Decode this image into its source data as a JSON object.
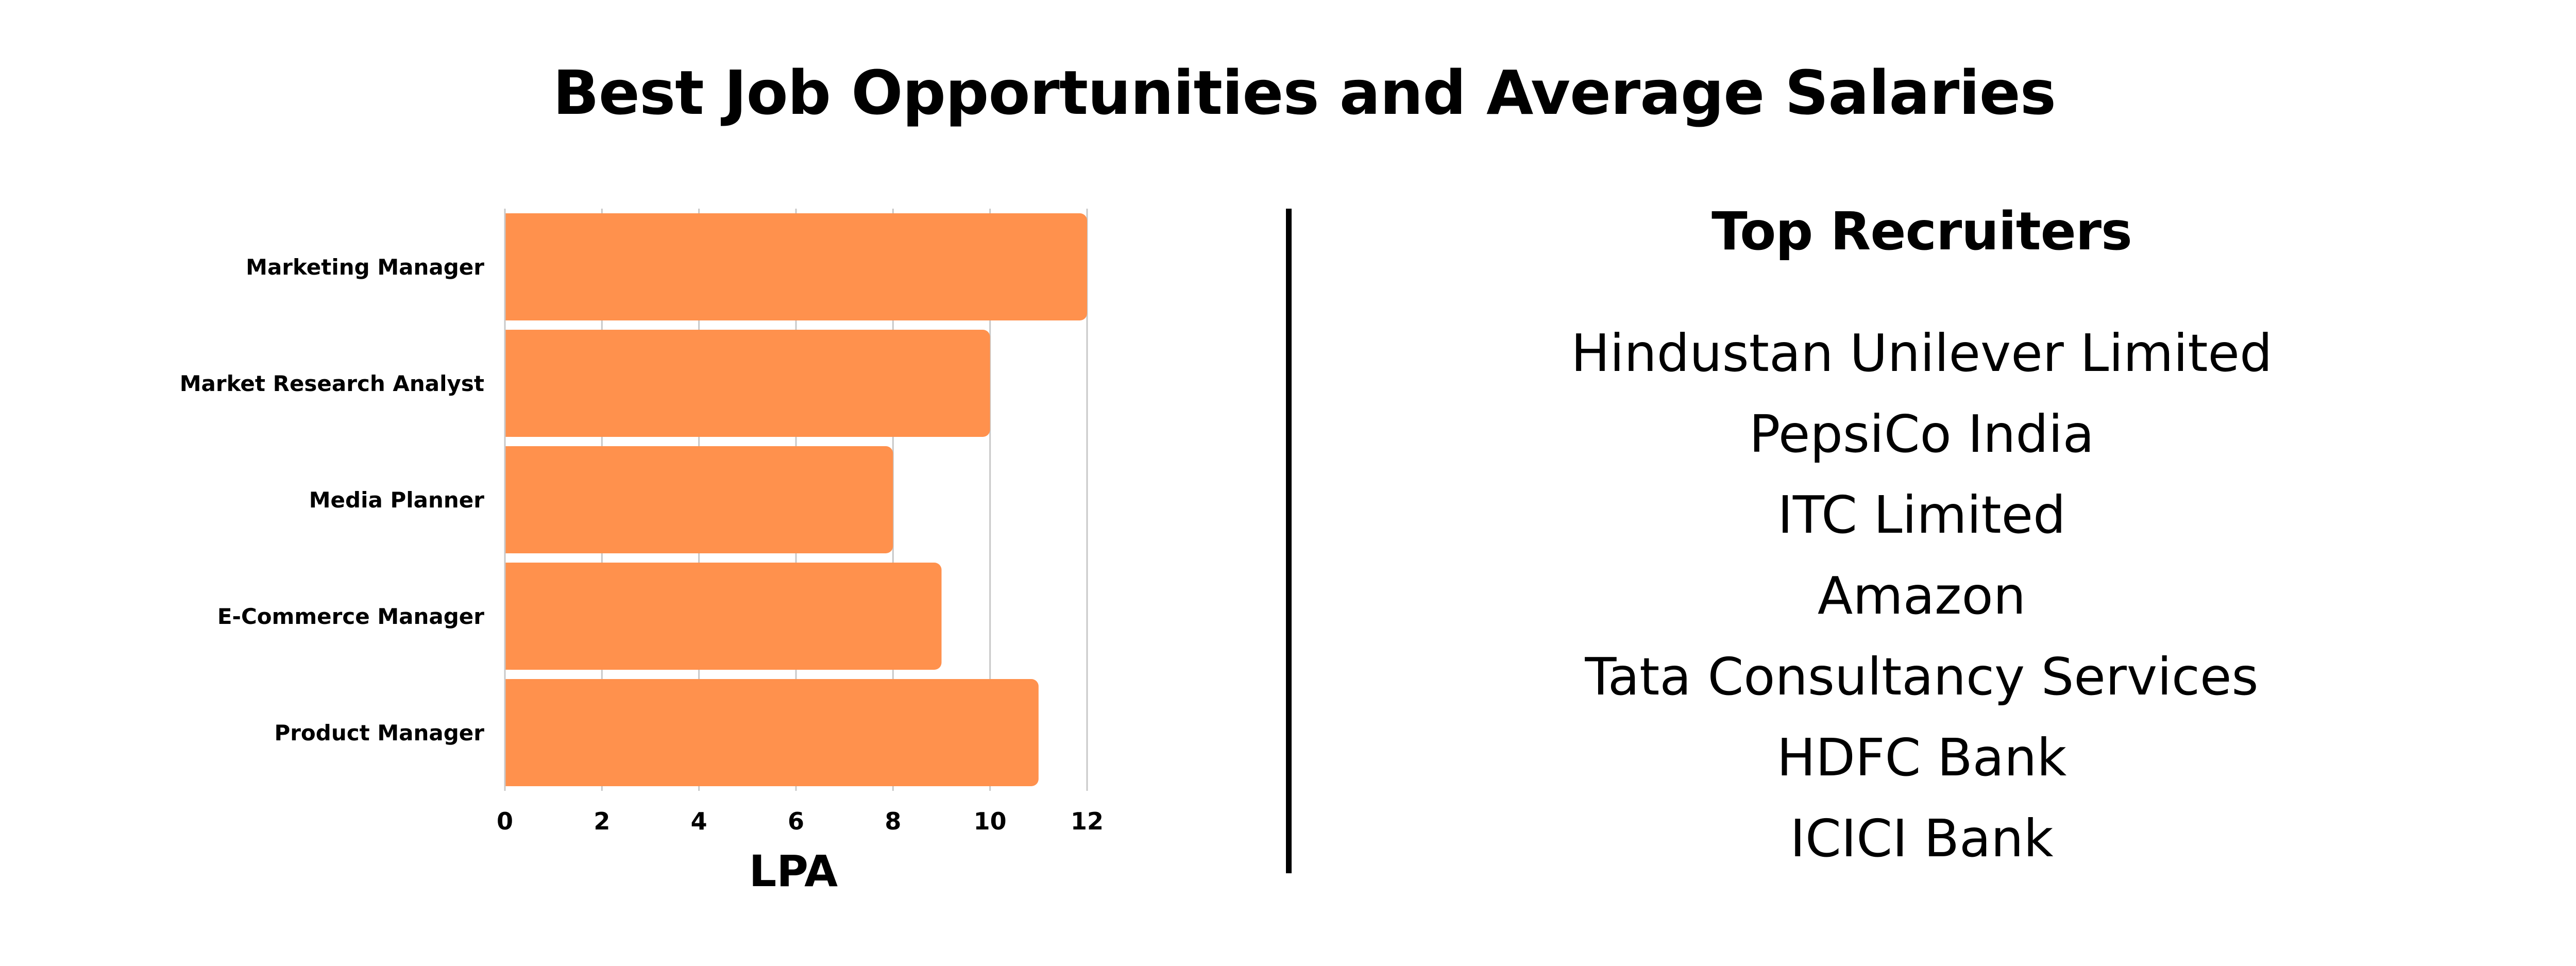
{
  "title": "Best Job Opportunities and Average Salaries",
  "colors": {
    "bar": "#FF914D",
    "grid": "#C8C8C8",
    "text": "#000000",
    "background": "#FFFFFF"
  },
  "chart_data": {
    "type": "bar",
    "orientation": "horizontal",
    "categories": [
      "Marketing Manager",
      "Market Research Analyst",
      "Media Planner",
      "E-Commerce Manager",
      "Product Manager"
    ],
    "values": [
      12,
      10,
      8,
      9,
      11
    ],
    "xlabel": "LPA",
    "ylabel": "",
    "xlim": [
      0,
      12
    ],
    "xticks": [
      "0",
      "2",
      "4",
      "6",
      "8",
      "10",
      "12"
    ],
    "grid": true,
    "legend": "none"
  },
  "recruiters": {
    "title": "Top Recruiters",
    "items": [
      "Hindustan Unilever Limited",
      "PepsiCo India",
      "ITC Limited",
      "Amazon",
      "Tata Consultancy Services",
      "HDFC Bank",
      "ICICI Bank"
    ]
  }
}
